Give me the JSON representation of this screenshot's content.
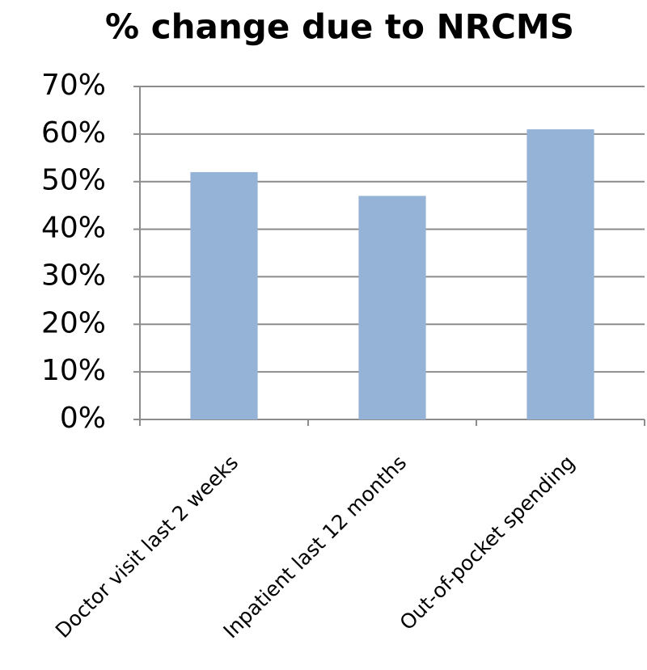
{
  "chart_data": {
    "type": "bar",
    "title": "% change due to NRCMS",
    "categories": [
      "Doctor visit last 2 weeks",
      "Inpatient last 12 months",
      "Out-of-pocket spending"
    ],
    "values": [
      52,
      47,
      61
    ],
    "color": "#95b3d7",
    "ylim": [
      0,
      70
    ],
    "yticks": [
      {
        "value": 0,
        "label": "0%"
      },
      {
        "value": 10,
        "label": "10%"
      },
      {
        "value": 20,
        "label": "20%"
      },
      {
        "value": 30,
        "label": "30%"
      },
      {
        "value": 40,
        "label": "40%"
      },
      {
        "value": 50,
        "label": "50%"
      },
      {
        "value": 60,
        "label": "60%"
      },
      {
        "value": 70,
        "label": "70%"
      }
    ],
    "grid": true
  }
}
